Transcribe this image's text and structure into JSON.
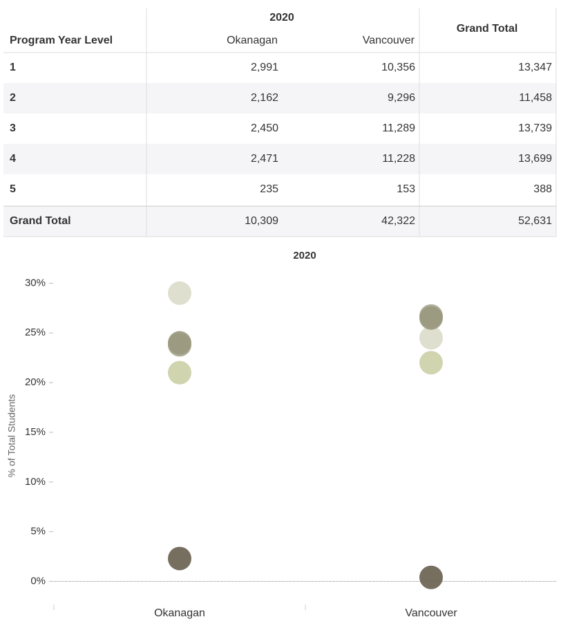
{
  "table": {
    "header": {
      "year": "2020",
      "columns": [
        "Program Year Level",
        "Okanagan",
        "Vancouver",
        "Grand Total"
      ]
    },
    "rows": [
      [
        "1",
        "2,991",
        "10,356",
        "13,347"
      ],
      [
        "2",
        "2,162",
        "9,296",
        "11,458"
      ],
      [
        "3",
        "2,450",
        "11,289",
        "13,739"
      ],
      [
        "4",
        "2,471",
        "11,228",
        "13,699"
      ],
      [
        "5",
        "235",
        "153",
        "388"
      ],
      [
        "Grand Total",
        "10,309",
        "42,322",
        "52,631"
      ]
    ]
  },
  "chart_data": {
    "type": "strip",
    "title": "2020",
    "y_label": "% of Total Students",
    "categories": [
      "Okanagan",
      "Vancouver"
    ],
    "series": [
      {
        "color": "#dcdccb",
        "values": [
          29.0,
          24.5
        ]
      },
      {
        "color": "#ccd0a8",
        "values": [
          21.0,
          22.0
        ]
      },
      {
        "color": "#a7a68e",
        "values": [
          23.8,
          26.7
        ]
      },
      {
        "color": "#9a9980",
        "values": [
          24.0,
          26.5
        ]
      },
      {
        "color": "#6a6250",
        "values": [
          2.3,
          0.4
        ]
      }
    ],
    "ylim": [
      -2.4,
      31.7
    ],
    "yticks": [
      {
        "value": 0,
        "label": "0%"
      },
      {
        "value": 5,
        "label": "5%"
      },
      {
        "value": 10,
        "label": "10%"
      },
      {
        "value": 15,
        "label": "15%"
      },
      {
        "value": 20,
        "label": "20%"
      },
      {
        "value": 25,
        "label": "25%"
      },
      {
        "value": 30,
        "label": "30%"
      }
    ]
  }
}
